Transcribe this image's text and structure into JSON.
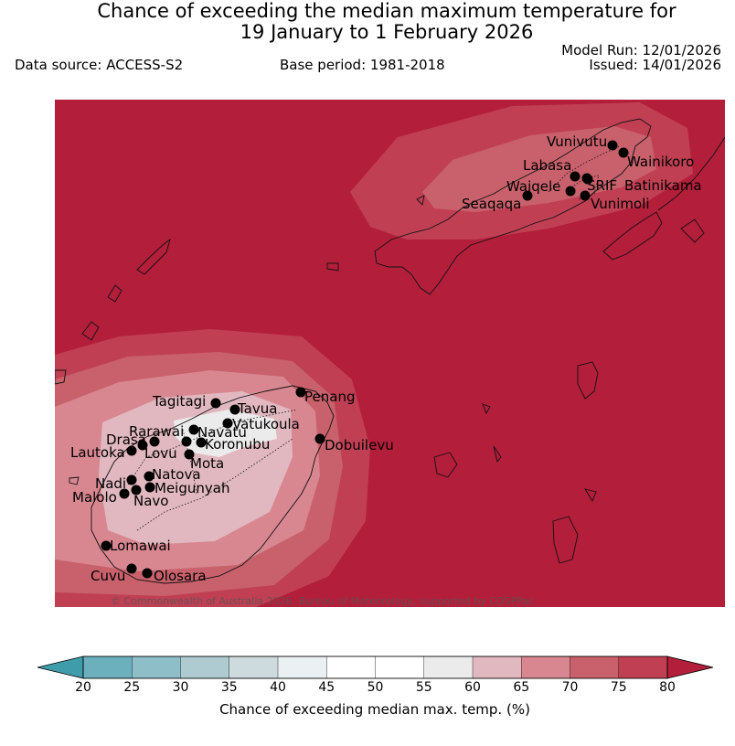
{
  "header": {
    "title_line1": "Chance of exceeding the median maximum temperature for",
    "title_line2": "19 January to 1 February 2026",
    "data_source": "Data source: ACCESS-S2",
    "base_period": "Base period: 1981-2018",
    "model_run": "Model Run: 12/01/2026",
    "issued": "Issued: 14/01/2026"
  },
  "map": {
    "copyright": "© Commonwealth of Australia 2026, Bureau of Meteorology, supported by COSPPac",
    "background_color": "#b31e3a",
    "stations": [
      {
        "name": "Vunivutu"
      },
      {
        "name": "Wainikoro"
      },
      {
        "name": "Labasa"
      },
      {
        "name": "Waiqele"
      },
      {
        "name": "SRIF"
      },
      {
        "name": "Batinikama"
      },
      {
        "name": "Seaqaqa"
      },
      {
        "name": "Vunimoli"
      },
      {
        "name": "Tagitagi"
      },
      {
        "name": "Tavua"
      },
      {
        "name": "Penang"
      },
      {
        "name": "Vatukoula"
      },
      {
        "name": "Rarawai"
      },
      {
        "name": "Navatu"
      },
      {
        "name": "Drasa"
      },
      {
        "name": "Koronubu"
      },
      {
        "name": "Lautoka"
      },
      {
        "name": "Lovu"
      },
      {
        "name": "Dobuilevu"
      },
      {
        "name": "Mota"
      },
      {
        "name": "Natova"
      },
      {
        "name": "Nadi"
      },
      {
        "name": "Meigunyah"
      },
      {
        "name": "Malolo"
      },
      {
        "name": "Navo"
      },
      {
        "name": "Lomawai"
      },
      {
        "name": "Cuvu"
      },
      {
        "name": "Olosara"
      }
    ]
  },
  "colorbar": {
    "title": "Chance of exceeding median max. temp. (%)",
    "ticks": [
      "20",
      "25",
      "30",
      "35",
      "40",
      "45",
      "50",
      "55",
      "60",
      "65",
      "70",
      "75",
      "80"
    ],
    "colors": [
      "#3f9caa",
      "#6bb0bc",
      "#8ebec7",
      "#adcbd0",
      "#cddbde",
      "#ebf0f2",
      "#ffffff",
      "#ffffff",
      "#ecebec",
      "#e1b8bf",
      "#d88791",
      "#c8616c",
      "#c03f53",
      "#b31e3a"
    ]
  }
}
